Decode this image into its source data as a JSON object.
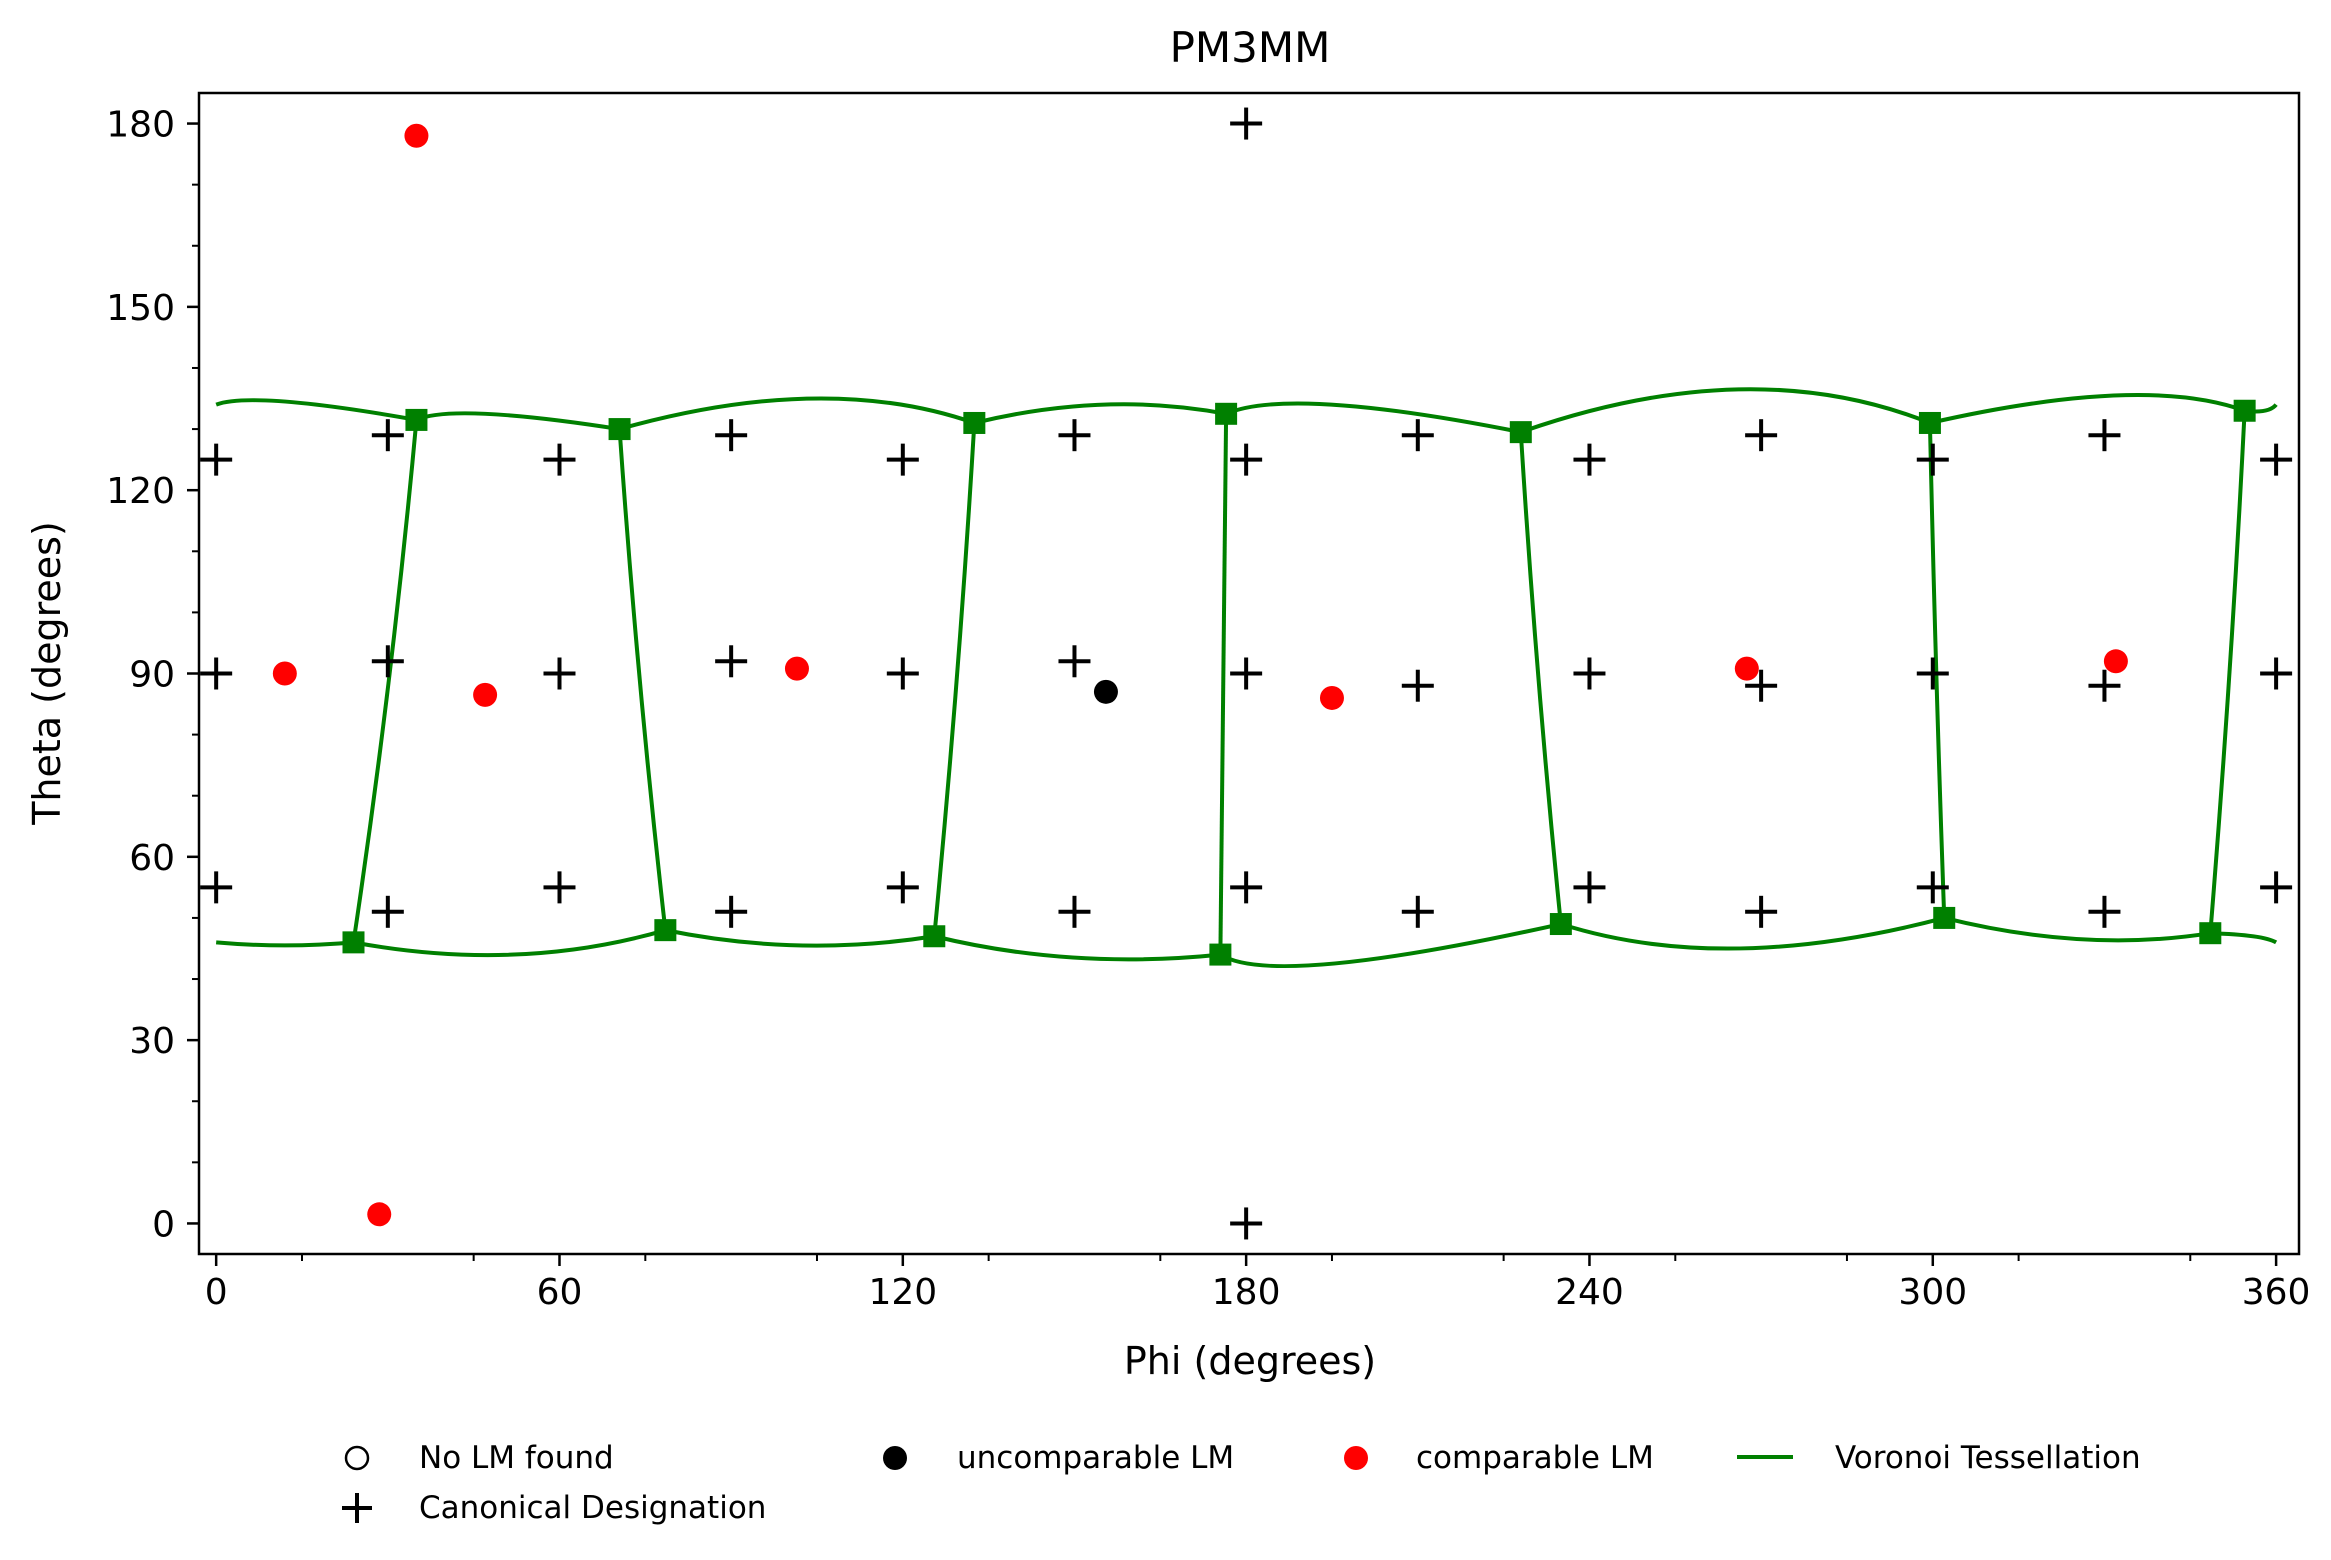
{
  "chart_data": {
    "type": "scatter",
    "title": "PM3MM",
    "xlabel": "Phi (degrees)",
    "ylabel": "Theta (degrees)",
    "xlim": [
      -3,
      364
    ],
    "ylim": [
      185,
      -5
    ],
    "xticks": [
      0,
      60,
      120,
      180,
      240,
      300,
      360
    ],
    "xtick_labels": [
      "0",
      "60",
      "120",
      "180",
      "240",
      "300",
      "360"
    ],
    "yticks": [
      0,
      30,
      60,
      90,
      120,
      150,
      180
    ],
    "ytick_labels": [
      "0",
      "30",
      "60",
      "90",
      "120",
      "150",
      "180"
    ],
    "grid": false,
    "legend": {
      "position": "bottom",
      "entries": [
        {
          "label": "No LM found",
          "marker": "open-circle"
        },
        {
          "label": "uncomparable LM",
          "marker": "black-dot"
        },
        {
          "label": "comparable LM",
          "marker": "red-dot"
        },
        {
          "label": "Voronoi Tessellation",
          "marker": "green-line"
        },
        {
          "label": "Canonical Designation",
          "marker": "plus"
        }
      ]
    },
    "series": {
      "canonical_designation": {
        "name": "Canonical Designation",
        "color": "#000000",
        "points": [
          [
            180,
            0
          ],
          [
            180,
            180
          ],
          [
            0,
            55
          ],
          [
            30,
            51
          ],
          [
            60,
            55
          ],
          [
            90,
            51
          ],
          [
            120,
            55
          ],
          [
            150,
            51
          ],
          [
            180,
            55
          ],
          [
            210,
            51
          ],
          [
            240,
            55
          ],
          [
            270,
            51
          ],
          [
            300,
            55
          ],
          [
            330,
            51
          ],
          [
            360,
            55
          ],
          [
            0,
            90
          ],
          [
            30,
            92
          ],
          [
            60,
            90
          ],
          [
            90,
            92
          ],
          [
            120,
            90
          ],
          [
            150,
            92
          ],
          [
            180,
            90
          ],
          [
            210,
            88
          ],
          [
            240,
            90
          ],
          [
            270,
            88
          ],
          [
            300,
            90
          ],
          [
            330,
            88
          ],
          [
            360,
            90
          ],
          [
            0,
            125
          ],
          [
            30,
            129
          ],
          [
            60,
            125
          ],
          [
            90,
            129
          ],
          [
            120,
            125
          ],
          [
            150,
            129
          ],
          [
            180,
            125
          ],
          [
            210,
            129
          ],
          [
            240,
            125
          ],
          [
            270,
            129
          ],
          [
            300,
            125
          ],
          [
            330,
            129
          ],
          [
            360,
            125
          ]
        ]
      },
      "comparable_lm": {
        "name": "comparable LM",
        "color": "#ff0000",
        "points": [
          [
            28.5,
            1.5
          ],
          [
            35,
            178
          ],
          [
            12,
            90
          ],
          [
            47,
            86.5
          ],
          [
            101.5,
            90.8
          ],
          [
            195,
            86
          ],
          [
            267.5,
            90.8
          ],
          [
            332,
            92
          ]
        ]
      },
      "uncomparable_lm": {
        "name": "uncomparable LM",
        "color": "#000000",
        "points": [
          [
            155.5,
            87
          ]
        ]
      },
      "voronoi_tessellation": {
        "name": "Voronoi Tessellation",
        "color": "#008000",
        "vertices": [
          [
            24,
            46
          ],
          [
            78.5,
            48
          ],
          [
            125.5,
            47
          ],
          [
            175.5,
            44
          ],
          [
            235,
            49
          ],
          [
            302,
            50
          ],
          [
            348.5,
            47.5
          ],
          [
            35,
            131.5
          ],
          [
            70.5,
            130
          ],
          [
            132.5,
            131
          ],
          [
            176.5,
            132.5
          ],
          [
            228,
            129.5
          ],
          [
            299.5,
            131
          ],
          [
            354.5,
            133
          ]
        ],
        "top_arcs": [
          [
            [
              0,
              46
            ],
            [
              12,
              45.5
            ],
            [
              24,
              46
            ]
          ],
          [
            [
              24,
              46
            ],
            [
              52,
              44
            ],
            [
              78.5,
              48
            ]
          ],
          [
            [
              78.5,
              48
            ],
            [
              102,
              45.5
            ],
            [
              125.5,
              47
            ]
          ],
          [
            [
              125.5,
              47
            ],
            [
              150,
              43.5
            ],
            [
              175.5,
              44
            ]
          ],
          [
            [
              175.5,
              44
            ],
            [
              195,
              42.5
            ],
            [
              235,
              49
            ]
          ],
          [
            [
              235,
              49
            ],
            [
              266,
              45
            ],
            [
              302,
              50
            ]
          ],
          [
            [
              302,
              50
            ],
            [
              326,
              46.5
            ],
            [
              348.5,
              47.5
            ]
          ],
          [
            [
              348.5,
              47.5
            ],
            [
              356,
              47
            ],
            [
              360,
              46
            ]
          ]
        ],
        "bottom_arcs": [
          [
            [
              0,
              134
            ],
            [
              12,
              134.5
            ],
            [
              35,
              131.5
            ]
          ],
          [
            [
              35,
              131.5
            ],
            [
              47,
              132.5
            ],
            [
              70.5,
              130
            ]
          ],
          [
            [
              70.5,
              130
            ],
            [
              104,
              135
            ],
            [
              132.5,
              131
            ]
          ],
          [
            [
              132.5,
              131
            ],
            [
              155,
              134
            ],
            [
              176.5,
              132.5
            ]
          ],
          [
            [
              176.5,
              132.5
            ],
            [
              195,
              134
            ],
            [
              228,
              129.5
            ]
          ],
          [
            [
              228,
              129.5
            ],
            [
              266,
              136.5
            ],
            [
              299.5,
              131
            ]
          ],
          [
            [
              299.5,
              131
            ],
            [
              332,
              135.5
            ],
            [
              354.5,
              133
            ]
          ],
          [
            [
              354.5,
              133
            ],
            [
              358,
              133
            ],
            [
              360,
              134
            ]
          ]
        ],
        "walls": [
          [
            [
              24,
              46
            ],
            [
              35,
              131.5
            ]
          ],
          [
            [
              78.5,
              48
            ],
            [
              70.5,
              130
            ]
          ],
          [
            [
              125.5,
              47
            ],
            [
              132.5,
              131
            ]
          ],
          [
            [
              175.5,
              44
            ],
            [
              176.5,
              132.5
            ]
          ],
          [
            [
              235,
              49
            ],
            [
              228,
              129.5
            ]
          ],
          [
            [
              302,
              50
            ],
            [
              299.5,
              131
            ]
          ],
          [
            [
              348.5,
              47.5
            ],
            [
              354.5,
              133
            ]
          ]
        ]
      }
    }
  }
}
